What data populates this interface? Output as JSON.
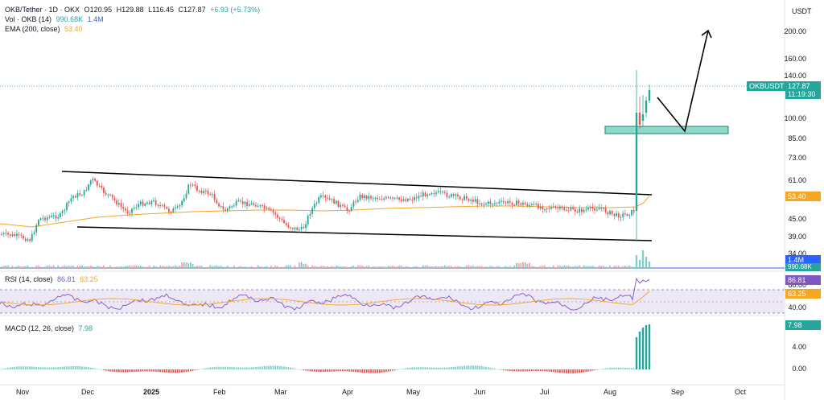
{
  "header": {
    "symbol": "OKB/Tether · 1D · OKX",
    "open_label": "O",
    "open": "120.95",
    "high_label": "H",
    "high": "129.88",
    "low_label": "L",
    "low": "116.45",
    "close_label": "C",
    "close": "127.87",
    "change": "+6.93 (+5.73%)"
  },
  "volume_legend": {
    "label": "Vol · OKB (14)",
    "value1": "990.68K",
    "value2": "1.4M"
  },
  "ema_legend": {
    "label": "EMA (200, close)",
    "value": "53.40"
  },
  "rsi_legend": {
    "label": "RSI (14, close)",
    "value1": "86.81",
    "value2": "63.25"
  },
  "macd_legend": {
    "label": "MACD (12, 26, close)",
    "value": "7.98"
  },
  "currency": "USDT",
  "price_tag": {
    "symbol": "OKBUSDT",
    "price": "127.87",
    "countdown": "11:19:30"
  },
  "ema_tag": "53.40",
  "vol_tags": {
    "v1": "1.4M",
    "v2": "990.68K"
  },
  "rsi_tags": {
    "r1": "86.81",
    "r2": "63.25"
  },
  "macd_tag": "7.98",
  "price_axis": [
    "200.00",
    "160.00",
    "140.00",
    "100.00",
    "85.00",
    "73.00",
    "61.00",
    "45.00",
    "39.00",
    "34.00"
  ],
  "rsi_axis": [
    "80.00",
    "40.00"
  ],
  "macd_axis": [
    "4.00",
    "0.00"
  ],
  "time_axis": [
    "Nov",
    "Dec",
    "2025",
    "Feb",
    "Mar",
    "Apr",
    "May",
    "Jun",
    "Jul",
    "Aug",
    "Sep",
    "Oct"
  ],
  "colors": {
    "up": "#26a69a",
    "down": "#ef5350",
    "ema": "#f5a623",
    "rsi": "#7e57c2",
    "volume": "#2962ff",
    "zone": "#6fd3c1"
  }
}
